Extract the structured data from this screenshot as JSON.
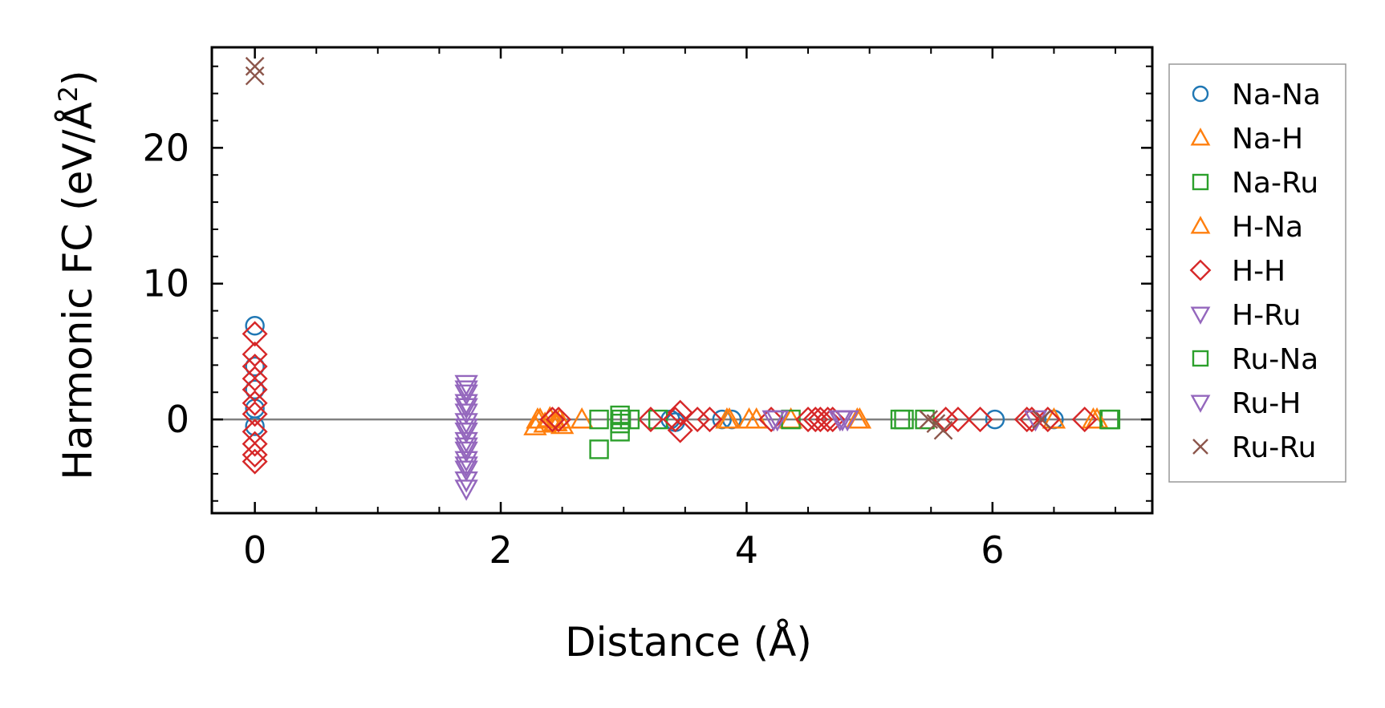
{
  "chart_data": {
    "type": "scatter",
    "xlabel": "Distance (Å)",
    "ylabel_main": "Harmonic FC (eV/Å",
    "ylabel_sup": "2",
    "ylabel_end": ")",
    "xlim": [
      -0.35,
      7.3
    ],
    "ylim": [
      -6.9,
      27.4
    ],
    "xticks": [
      0,
      2,
      4,
      6
    ],
    "xtick_labels": [
      "0",
      "2",
      "4",
      "6"
    ],
    "yticks": [
      0,
      10,
      20
    ],
    "ytick_labels": [
      "0",
      "10",
      "20"
    ],
    "zero_line": true,
    "legend_position": "outside-right",
    "series": [
      {
        "name": "Na-Na",
        "marker": "circle",
        "color": "#1f77b4",
        "points": [
          [
            0,
            6.9
          ],
          [
            0,
            3.9
          ],
          [
            0,
            2.2
          ],
          [
            0,
            0.8
          ],
          [
            0,
            -0.5
          ],
          [
            3.38,
            0
          ],
          [
            3.42,
            -0.2
          ],
          [
            3.8,
            0
          ],
          [
            3.88,
            0
          ],
          [
            6.02,
            0
          ],
          [
            6.5,
            0
          ]
        ]
      },
      {
        "name": "Na-H",
        "marker": "triangle-up",
        "color": "#ff7f0e",
        "points": [
          [
            2.28,
            -0.5
          ],
          [
            2.32,
            0
          ],
          [
            2.36,
            -0.3
          ],
          [
            2.4,
            0.1
          ],
          [
            2.44,
            -0.2
          ],
          [
            2.48,
            0
          ],
          [
            2.5,
            -0.4
          ],
          [
            2.66,
            0
          ],
          [
            3.86,
            0
          ],
          [
            4.02,
            0
          ],
          [
            4.36,
            0
          ],
          [
            4.92,
            0
          ],
          [
            6.5,
            0
          ],
          [
            6.82,
            0
          ]
        ]
      },
      {
        "name": "Na-Ru",
        "marker": "square",
        "color": "#2ca02c",
        "points": [
          [
            2.8,
            0
          ],
          [
            2.8,
            -2.2
          ],
          [
            2.97,
            0.3
          ],
          [
            2.97,
            -0.3
          ],
          [
            2.97,
            -0.9
          ],
          [
            3.28,
            0
          ],
          [
            4.36,
            0
          ],
          [
            5.25,
            0
          ],
          [
            5.45,
            0
          ],
          [
            6.96,
            0
          ]
        ]
      },
      {
        "name": "H-Na",
        "marker": "triangle-up",
        "color": "#ff7f0e",
        "points": [
          [
            2.3,
            0
          ],
          [
            2.45,
            -0.2
          ],
          [
            3.84,
            0
          ],
          [
            4.08,
            0
          ],
          [
            4.9,
            0
          ],
          [
            6.85,
            0
          ]
        ]
      },
      {
        "name": "H-H",
        "marker": "diamond",
        "color": "#d62728",
        "points": [
          [
            0,
            6.3
          ],
          [
            0,
            4.8
          ],
          [
            0,
            3.9
          ],
          [
            0,
            3.0
          ],
          [
            0,
            2.2
          ],
          [
            0,
            1.2
          ],
          [
            0,
            0.4
          ],
          [
            0,
            -0.9
          ],
          [
            0,
            -1.8
          ],
          [
            0,
            -2.6
          ],
          [
            0,
            -3.1
          ],
          [
            2.42,
            0
          ],
          [
            2.47,
            0
          ],
          [
            3.22,
            0
          ],
          [
            3.42,
            0
          ],
          [
            3.46,
            0.5
          ],
          [
            3.46,
            -0.8
          ],
          [
            3.6,
            0
          ],
          [
            3.7,
            0
          ],
          [
            4.2,
            0
          ],
          [
            4.5,
            0
          ],
          [
            4.56,
            0
          ],
          [
            4.6,
            0
          ],
          [
            4.66,
            0
          ],
          [
            4.7,
            0
          ],
          [
            5.62,
            0
          ],
          [
            5.72,
            0
          ],
          [
            5.9,
            0
          ],
          [
            6.28,
            0
          ],
          [
            6.32,
            0
          ],
          [
            6.45,
            0
          ],
          [
            6.75,
            0
          ]
        ]
      },
      {
        "name": "H-Ru",
        "marker": "triangle-down",
        "color": "#9467bd",
        "points": [
          [
            1.72,
            2.6
          ],
          [
            1.72,
            1.9
          ],
          [
            1.72,
            1.2
          ],
          [
            1.72,
            0.5
          ],
          [
            1.72,
            -0.2
          ],
          [
            1.72,
            -0.9
          ],
          [
            1.72,
            -1.6
          ],
          [
            1.72,
            -2.3
          ],
          [
            1.72,
            -3.0
          ],
          [
            1.72,
            -3.7
          ],
          [
            1.72,
            -4.5
          ],
          [
            1.72,
            -5.1
          ],
          [
            4.22,
            0
          ],
          [
            4.76,
            0
          ],
          [
            4.82,
            0
          ]
        ]
      },
      {
        "name": "Ru-Na",
        "marker": "square",
        "color": "#2ca02c",
        "points": [
          [
            2.98,
            0
          ],
          [
            3.05,
            0
          ],
          [
            5.28,
            0
          ],
          [
            6.95,
            0
          ]
        ]
      },
      {
        "name": "Ru-H",
        "marker": "triangle-down",
        "color": "#9467bd",
        "points": [
          [
            1.72,
            2.2
          ],
          [
            1.72,
            0.9
          ],
          [
            1.72,
            -0.6
          ],
          [
            1.72,
            -2.0
          ],
          [
            1.72,
            -3.4
          ],
          [
            4.25,
            0
          ],
          [
            4.78,
            0
          ],
          [
            6.35,
            0
          ]
        ]
      },
      {
        "name": "Ru-Ru",
        "marker": "x",
        "color": "#8c564b",
        "points": [
          [
            0,
            26.0
          ],
          [
            0,
            25.3
          ],
          [
            5.48,
            0
          ],
          [
            5.54,
            -0.3
          ],
          [
            5.6,
            -0.8
          ],
          [
            6.4,
            0
          ]
        ]
      }
    ]
  }
}
